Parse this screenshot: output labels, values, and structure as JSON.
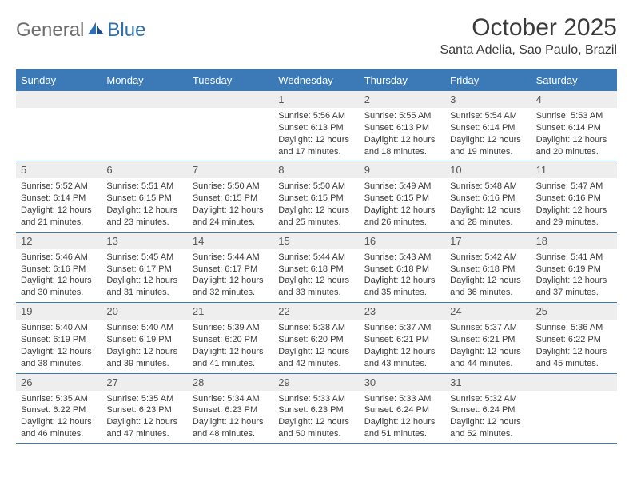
{
  "logo": {
    "part1": "General",
    "part2": "Blue"
  },
  "title": "October 2025",
  "location": "Santa Adelia, Sao Paulo, Brazil",
  "colors": {
    "header_bg": "#3b79b7",
    "header_text": "#ffffff",
    "border": "#3b78b5",
    "num_bg": "#eeeeee",
    "num_text": "#555555",
    "body_text": "#3a3a3a",
    "logo_gray": "#6d6d6d",
    "logo_blue": "#2f6fb0"
  },
  "day_names": [
    "Sunday",
    "Monday",
    "Tuesday",
    "Wednesday",
    "Thursday",
    "Friday",
    "Saturday"
  ],
  "weeks": [
    [
      {
        "n": "",
        "l1": "",
        "l2": "",
        "l3": "",
        "l4": ""
      },
      {
        "n": "",
        "l1": "",
        "l2": "",
        "l3": "",
        "l4": ""
      },
      {
        "n": "",
        "l1": "",
        "l2": "",
        "l3": "",
        "l4": ""
      },
      {
        "n": "1",
        "l1": "Sunrise: 5:56 AM",
        "l2": "Sunset: 6:13 PM",
        "l3": "Daylight: 12 hours",
        "l4": "and 17 minutes."
      },
      {
        "n": "2",
        "l1": "Sunrise: 5:55 AM",
        "l2": "Sunset: 6:13 PM",
        "l3": "Daylight: 12 hours",
        "l4": "and 18 minutes."
      },
      {
        "n": "3",
        "l1": "Sunrise: 5:54 AM",
        "l2": "Sunset: 6:14 PM",
        "l3": "Daylight: 12 hours",
        "l4": "and 19 minutes."
      },
      {
        "n": "4",
        "l1": "Sunrise: 5:53 AM",
        "l2": "Sunset: 6:14 PM",
        "l3": "Daylight: 12 hours",
        "l4": "and 20 minutes."
      }
    ],
    [
      {
        "n": "5",
        "l1": "Sunrise: 5:52 AM",
        "l2": "Sunset: 6:14 PM",
        "l3": "Daylight: 12 hours",
        "l4": "and 21 minutes."
      },
      {
        "n": "6",
        "l1": "Sunrise: 5:51 AM",
        "l2": "Sunset: 6:15 PM",
        "l3": "Daylight: 12 hours",
        "l4": "and 23 minutes."
      },
      {
        "n": "7",
        "l1": "Sunrise: 5:50 AM",
        "l2": "Sunset: 6:15 PM",
        "l3": "Daylight: 12 hours",
        "l4": "and 24 minutes."
      },
      {
        "n": "8",
        "l1": "Sunrise: 5:50 AM",
        "l2": "Sunset: 6:15 PM",
        "l3": "Daylight: 12 hours",
        "l4": "and 25 minutes."
      },
      {
        "n": "9",
        "l1": "Sunrise: 5:49 AM",
        "l2": "Sunset: 6:15 PM",
        "l3": "Daylight: 12 hours",
        "l4": "and 26 minutes."
      },
      {
        "n": "10",
        "l1": "Sunrise: 5:48 AM",
        "l2": "Sunset: 6:16 PM",
        "l3": "Daylight: 12 hours",
        "l4": "and 28 minutes."
      },
      {
        "n": "11",
        "l1": "Sunrise: 5:47 AM",
        "l2": "Sunset: 6:16 PM",
        "l3": "Daylight: 12 hours",
        "l4": "and 29 minutes."
      }
    ],
    [
      {
        "n": "12",
        "l1": "Sunrise: 5:46 AM",
        "l2": "Sunset: 6:16 PM",
        "l3": "Daylight: 12 hours",
        "l4": "and 30 minutes."
      },
      {
        "n": "13",
        "l1": "Sunrise: 5:45 AM",
        "l2": "Sunset: 6:17 PM",
        "l3": "Daylight: 12 hours",
        "l4": "and 31 minutes."
      },
      {
        "n": "14",
        "l1": "Sunrise: 5:44 AM",
        "l2": "Sunset: 6:17 PM",
        "l3": "Daylight: 12 hours",
        "l4": "and 32 minutes."
      },
      {
        "n": "15",
        "l1": "Sunrise: 5:44 AM",
        "l2": "Sunset: 6:18 PM",
        "l3": "Daylight: 12 hours",
        "l4": "and 33 minutes."
      },
      {
        "n": "16",
        "l1": "Sunrise: 5:43 AM",
        "l2": "Sunset: 6:18 PM",
        "l3": "Daylight: 12 hours",
        "l4": "and 35 minutes."
      },
      {
        "n": "17",
        "l1": "Sunrise: 5:42 AM",
        "l2": "Sunset: 6:18 PM",
        "l3": "Daylight: 12 hours",
        "l4": "and 36 minutes."
      },
      {
        "n": "18",
        "l1": "Sunrise: 5:41 AM",
        "l2": "Sunset: 6:19 PM",
        "l3": "Daylight: 12 hours",
        "l4": "and 37 minutes."
      }
    ],
    [
      {
        "n": "19",
        "l1": "Sunrise: 5:40 AM",
        "l2": "Sunset: 6:19 PM",
        "l3": "Daylight: 12 hours",
        "l4": "and 38 minutes."
      },
      {
        "n": "20",
        "l1": "Sunrise: 5:40 AM",
        "l2": "Sunset: 6:19 PM",
        "l3": "Daylight: 12 hours",
        "l4": "and 39 minutes."
      },
      {
        "n": "21",
        "l1": "Sunrise: 5:39 AM",
        "l2": "Sunset: 6:20 PM",
        "l3": "Daylight: 12 hours",
        "l4": "and 41 minutes."
      },
      {
        "n": "22",
        "l1": "Sunrise: 5:38 AM",
        "l2": "Sunset: 6:20 PM",
        "l3": "Daylight: 12 hours",
        "l4": "and 42 minutes."
      },
      {
        "n": "23",
        "l1": "Sunrise: 5:37 AM",
        "l2": "Sunset: 6:21 PM",
        "l3": "Daylight: 12 hours",
        "l4": "and 43 minutes."
      },
      {
        "n": "24",
        "l1": "Sunrise: 5:37 AM",
        "l2": "Sunset: 6:21 PM",
        "l3": "Daylight: 12 hours",
        "l4": "and 44 minutes."
      },
      {
        "n": "25",
        "l1": "Sunrise: 5:36 AM",
        "l2": "Sunset: 6:22 PM",
        "l3": "Daylight: 12 hours",
        "l4": "and 45 minutes."
      }
    ],
    [
      {
        "n": "26",
        "l1": "Sunrise: 5:35 AM",
        "l2": "Sunset: 6:22 PM",
        "l3": "Daylight: 12 hours",
        "l4": "and 46 minutes."
      },
      {
        "n": "27",
        "l1": "Sunrise: 5:35 AM",
        "l2": "Sunset: 6:23 PM",
        "l3": "Daylight: 12 hours",
        "l4": "and 47 minutes."
      },
      {
        "n": "28",
        "l1": "Sunrise: 5:34 AM",
        "l2": "Sunset: 6:23 PM",
        "l3": "Daylight: 12 hours",
        "l4": "and 48 minutes."
      },
      {
        "n": "29",
        "l1": "Sunrise: 5:33 AM",
        "l2": "Sunset: 6:23 PM",
        "l3": "Daylight: 12 hours",
        "l4": "and 50 minutes."
      },
      {
        "n": "30",
        "l1": "Sunrise: 5:33 AM",
        "l2": "Sunset: 6:24 PM",
        "l3": "Daylight: 12 hours",
        "l4": "and 51 minutes."
      },
      {
        "n": "31",
        "l1": "Sunrise: 5:32 AM",
        "l2": "Sunset: 6:24 PM",
        "l3": "Daylight: 12 hours",
        "l4": "and 52 minutes."
      },
      {
        "n": "",
        "l1": "",
        "l2": "",
        "l3": "",
        "l4": ""
      }
    ]
  ]
}
